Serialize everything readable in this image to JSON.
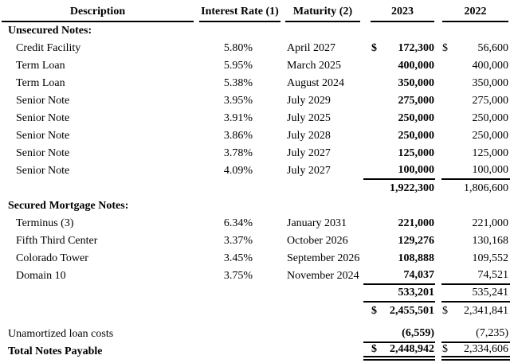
{
  "colors": {
    "text": "#000000",
    "background": "#ffffff",
    "rule": "#000000"
  },
  "table": {
    "headers": {
      "description": "Description",
      "interest_rate": "Interest Rate (1)",
      "maturity": "Maturity (2)",
      "year1": "2023",
      "year2": "2022"
    },
    "rows": [
      {
        "type": "section",
        "desc": "Unsecured Notes:"
      },
      {
        "type": "item",
        "desc": "Credit Facility",
        "rate": "5.80%",
        "mat": "April 2027",
        "cur1": "$",
        "val1": "172,300",
        "cur2": "$",
        "val2": "56,600"
      },
      {
        "type": "item",
        "desc": "Term Loan",
        "rate": "5.95%",
        "mat": "March 2025",
        "val1": "400,000",
        "val2": "400,000"
      },
      {
        "type": "item",
        "desc": "Term Loan",
        "rate": "5.38%",
        "mat": "August 2024",
        "val1": "350,000",
        "val2": "350,000"
      },
      {
        "type": "item",
        "desc": "Senior Note",
        "rate": "3.95%",
        "mat": "July 2029",
        "val1": "275,000",
        "val2": "275,000"
      },
      {
        "type": "item",
        "desc": "Senior Note",
        "rate": "3.91%",
        "mat": "July 2025",
        "val1": "250,000",
        "val2": "250,000"
      },
      {
        "type": "item",
        "desc": "Senior Note",
        "rate": "3.86%",
        "mat": "July 2028",
        "val1": "250,000",
        "val2": "250,000"
      },
      {
        "type": "item",
        "desc": "Senior Note",
        "rate": "3.78%",
        "mat": "July 2027",
        "val1": "125,000",
        "val2": "125,000"
      },
      {
        "type": "item",
        "desc": "Senior Note",
        "rate": "4.09%",
        "mat": "July 2027",
        "val1": "100,000",
        "val2": "100,000",
        "line": "below"
      },
      {
        "type": "plain",
        "val1": "1,922,300",
        "val2": "1,806,600"
      },
      {
        "type": "section",
        "desc": "Secured Mortgage Notes:"
      },
      {
        "type": "item",
        "desc": "Terminus (3)",
        "rate": "6.34%",
        "mat": "January 2031",
        "val1": "221,000",
        "val2": "221,000"
      },
      {
        "type": "item",
        "desc": "Fifth Third Center",
        "rate": "3.37%",
        "mat": "October 2026",
        "val1": "129,276",
        "val2": "130,168"
      },
      {
        "type": "item",
        "desc": "Colorado Tower",
        "rate": "3.45%",
        "mat": "September 2026",
        "val1": "108,888",
        "val2": "109,552"
      },
      {
        "type": "item",
        "desc": "Domain 10",
        "rate": "3.75%",
        "mat": "November 2024",
        "val1": "74,037",
        "val2": "74,521",
        "line": "below"
      },
      {
        "type": "plain",
        "val1": "533,201",
        "val2": "535,241",
        "line": "below"
      },
      {
        "type": "plain",
        "cur1": "$",
        "val1": "2,455,501",
        "cur2": "$",
        "val2": "2,341,841"
      },
      {
        "type": "spacer"
      },
      {
        "type": "plain",
        "desc": "Unamortized loan costs",
        "val1": "(6,559)",
        "val2": "(7,235)",
        "line": "below"
      },
      {
        "type": "total",
        "desc": "Total Notes Payable",
        "cur1": "$",
        "val1": "2,448,942",
        "cur2": "$",
        "val2": "2,334,606",
        "line": "double"
      }
    ]
  }
}
